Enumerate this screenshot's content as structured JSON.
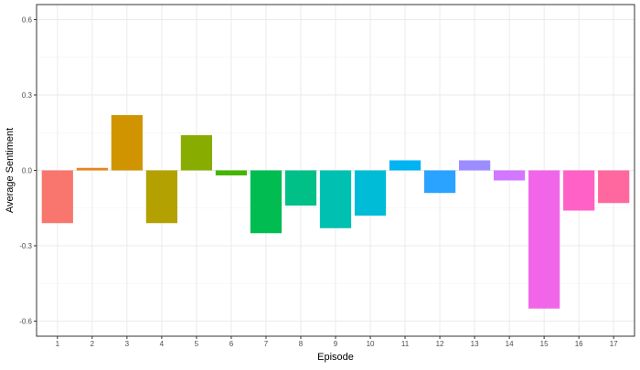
{
  "chart_data": {
    "type": "bar",
    "title": "",
    "xlabel": "Episode",
    "ylabel": "Average Sentiment",
    "categories": [
      "1",
      "2",
      "3",
      "4",
      "5",
      "6",
      "7",
      "8",
      "9",
      "10",
      "11",
      "12",
      "13",
      "14",
      "15",
      "16",
      "17"
    ],
    "values": [
      -0.21,
      0.01,
      0.22,
      -0.21,
      0.14,
      -0.02,
      -0.25,
      -0.14,
      -0.23,
      -0.18,
      0.04,
      -0.09,
      0.04,
      -0.04,
      -0.55,
      -0.16,
      -0.13
    ],
    "colors": [
      "#F8766D",
      "#E7851E",
      "#D09400",
      "#B2A100",
      "#89AC00",
      "#45B500",
      "#00BC51",
      "#00C087",
      "#00C0B2",
      "#00BCD6",
      "#00B3F2",
      "#29A3FF",
      "#9C8DFF",
      "#D277FF",
      "#F166E8",
      "#FF61C7",
      "#FF689E"
    ],
    "ylim": [
      -0.66,
      0.66
    ],
    "yticks": [
      -0.6,
      -0.3,
      0.0,
      0.3,
      0.6
    ],
    "ytick_labels": [
      "-0.6",
      "-0.3",
      "0.0",
      "0.3",
      "0.6"
    ],
    "grid": true,
    "legend": "none"
  }
}
